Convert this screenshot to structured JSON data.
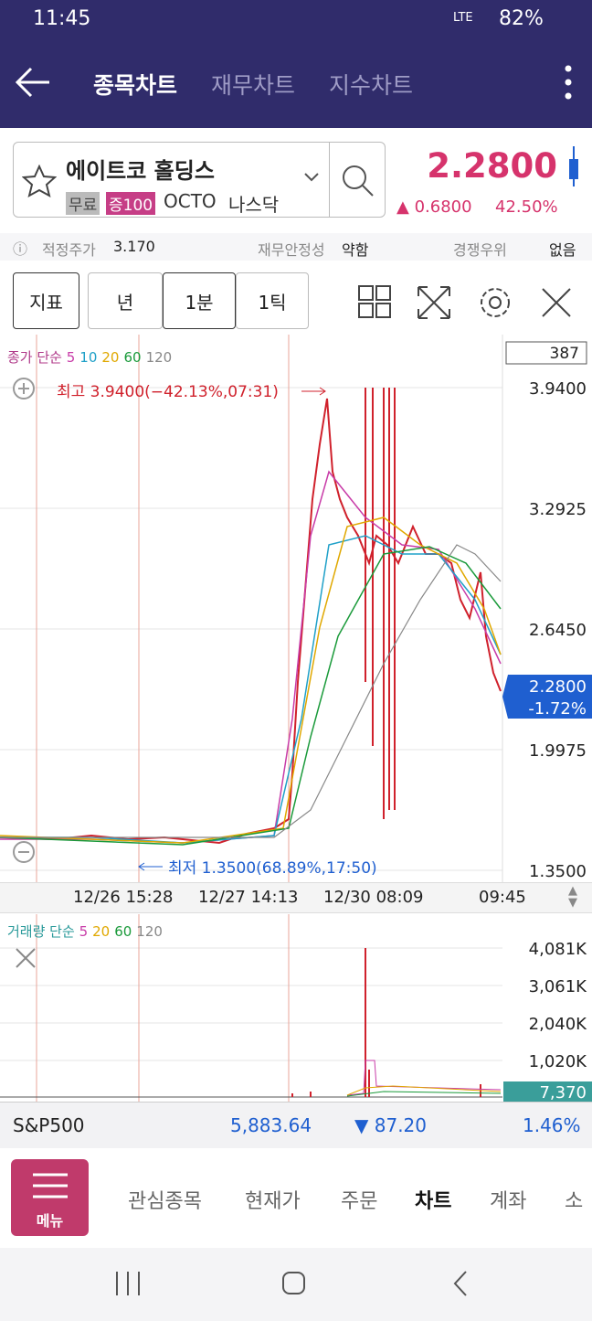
{
  "status_bar": {
    "time": "11:45",
    "network": "LTE",
    "battery": "82%"
  },
  "header": {
    "tabs": [
      "종목차트",
      "재무차트",
      "지수차트"
    ]
  },
  "stock": {
    "name": "에이트코 홀딩스",
    "badges": [
      "무료",
      "증100"
    ],
    "ticker": "OCTO",
    "market": "나스닥",
    "price": "2.2800",
    "change": "0.6800",
    "change_pct": "42.50%"
  },
  "info_bar": {
    "fair_price_label": "적정주가",
    "fair_price": "3.170",
    "stability_label": "재무안정성",
    "stability": "약함",
    "competition_label": "경쟁우위",
    "competition": "없음"
  },
  "toolbar": {
    "buttons": [
      "지표",
      "년",
      "1분",
      "1틱"
    ]
  },
  "price_chart": {
    "legend_label": "종가 단순",
    "ma": [
      {
        "label": "5",
        "color": "#c83ca8"
      },
      {
        "label": "10",
        "color": "#1fa0c8"
      },
      {
        "label": "20",
        "color": "#e0a800"
      },
      {
        "label": "60",
        "color": "#1a9a3a"
      },
      {
        "label": "120",
        "color": "#888888"
      }
    ],
    "count": "387",
    "yticks": [
      "3.9400",
      "3.2925",
      "2.6450",
      "1.9975",
      "1.3500"
    ],
    "high_label": "최고 3.9400(−42.13%,07:31)",
    "low_label": "최저 1.3500(68.89%,17:50)",
    "current": "2.2800",
    "current_change": "-1.72%",
    "x_labels": [
      "12/26 15:28",
      "12/27 14:13",
      "12/30 08:09",
      "09:45"
    ]
  },
  "volume_chart": {
    "legend_label": "거래량 단순",
    "ma": [
      {
        "label": "5",
        "color": "#c83ca8"
      },
      {
        "label": "20",
        "color": "#e0a800"
      },
      {
        "label": "60",
        "color": "#1a9a3a"
      },
      {
        "label": "120",
        "color": "#888888"
      }
    ],
    "yticks": [
      "4,081K",
      "3,061K",
      "2,040K",
      "1,020K"
    ],
    "current": "7,370"
  },
  "index_bar": {
    "name": "S&P500",
    "value": "5,883.64",
    "change": "87.20",
    "change_pct": "1.46%"
  },
  "bottom_nav": {
    "menu": "메뉴",
    "items": [
      "관심종목",
      "현재가",
      "주문",
      "차트",
      "계좌",
      "소"
    ]
  }
}
